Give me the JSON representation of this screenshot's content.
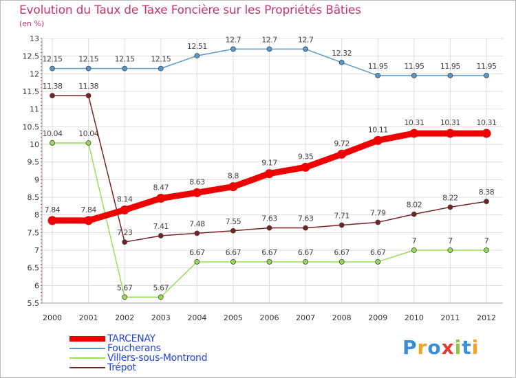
{
  "chart_data": {
    "type": "line",
    "title": "Evolution du Taux de Taxe Foncière sur les Propriétés Bâties",
    "subtitle": "(en %)",
    "x": [
      "2000",
      "2001",
      "2002",
      "2003",
      "2004",
      "2005",
      "2006",
      "2007",
      "2008",
      "2009",
      "2010",
      "2011",
      "2012"
    ],
    "ylim": [
      5.5,
      13
    ],
    "yticks": [
      "5.5",
      "6",
      "6.5",
      "7",
      "7.5",
      "8",
      "8.5",
      "9",
      "9.5",
      "10",
      "10.5",
      "11",
      "11.5",
      "12",
      "12.5",
      "13"
    ],
    "grid": true,
    "legend_position": "bottom-left",
    "series": [
      {
        "name": "TARCENAY",
        "color": "#ee0000",
        "emphasis": true,
        "start_index": 0,
        "values": [
          7.84,
          7.84,
          8.14,
          8.47,
          8.63,
          8.8,
          9.17,
          9.35,
          9.72,
          10.11,
          10.31,
          10.31,
          10.31
        ],
        "labels": [
          "7.84",
          "7.84",
          "8.14",
          "8.47",
          "8.63",
          "8.8",
          "9.17",
          "9.35",
          "9.72",
          "10.11",
          "10.31",
          "10.31",
          "10.31"
        ]
      },
      {
        "name": "Foucherans",
        "color": "#5599cc",
        "emphasis": false,
        "start_index": 0,
        "values": [
          12.15,
          12.15,
          12.15,
          12.15,
          12.51,
          12.7,
          12.7,
          12.7,
          12.32,
          11.95,
          11.95,
          11.95,
          11.95
        ],
        "labels": [
          "12.15",
          "12.15",
          "12.15",
          "12.15",
          "12.51",
          "12.7",
          "12.7",
          "12.7",
          "12.32",
          "11.95",
          "11.95",
          "11.95",
          "11.95"
        ]
      },
      {
        "name": "Villers-sous-Montrond",
        "color": "#99dd55",
        "emphasis": false,
        "start_index": 0,
        "values": [
          10.04,
          10.04,
          5.67,
          5.67,
          6.67,
          6.67,
          6.67,
          6.67,
          6.67,
          6.67,
          7,
          7,
          7
        ],
        "labels": [
          "10.04",
          "10.04",
          "5.67",
          "5.67",
          "6.67",
          "6.67",
          "6.67",
          "6.67",
          "6.67",
          "6.67",
          "7",
          "7",
          "7"
        ]
      },
      {
        "name": "Trépot",
        "color": "#772222",
        "emphasis": false,
        "start_index": 0,
        "values": [
          11.38,
          11.38,
          7.23,
          7.41,
          7.48,
          7.55,
          7.63,
          7.63,
          7.71,
          7.79,
          8.02,
          8.22,
          8.38
        ],
        "labels": [
          "11.38",
          "11.38",
          "7.23",
          "7.41",
          "7.48",
          "7.55",
          "7.63",
          "7.63",
          "7.71",
          "7.79",
          "8.02",
          "8.22",
          "8.38"
        ]
      }
    ]
  },
  "logo": {
    "letters": [
      "P",
      "r",
      "o",
      "x",
      "i",
      "t",
      "i"
    ]
  }
}
